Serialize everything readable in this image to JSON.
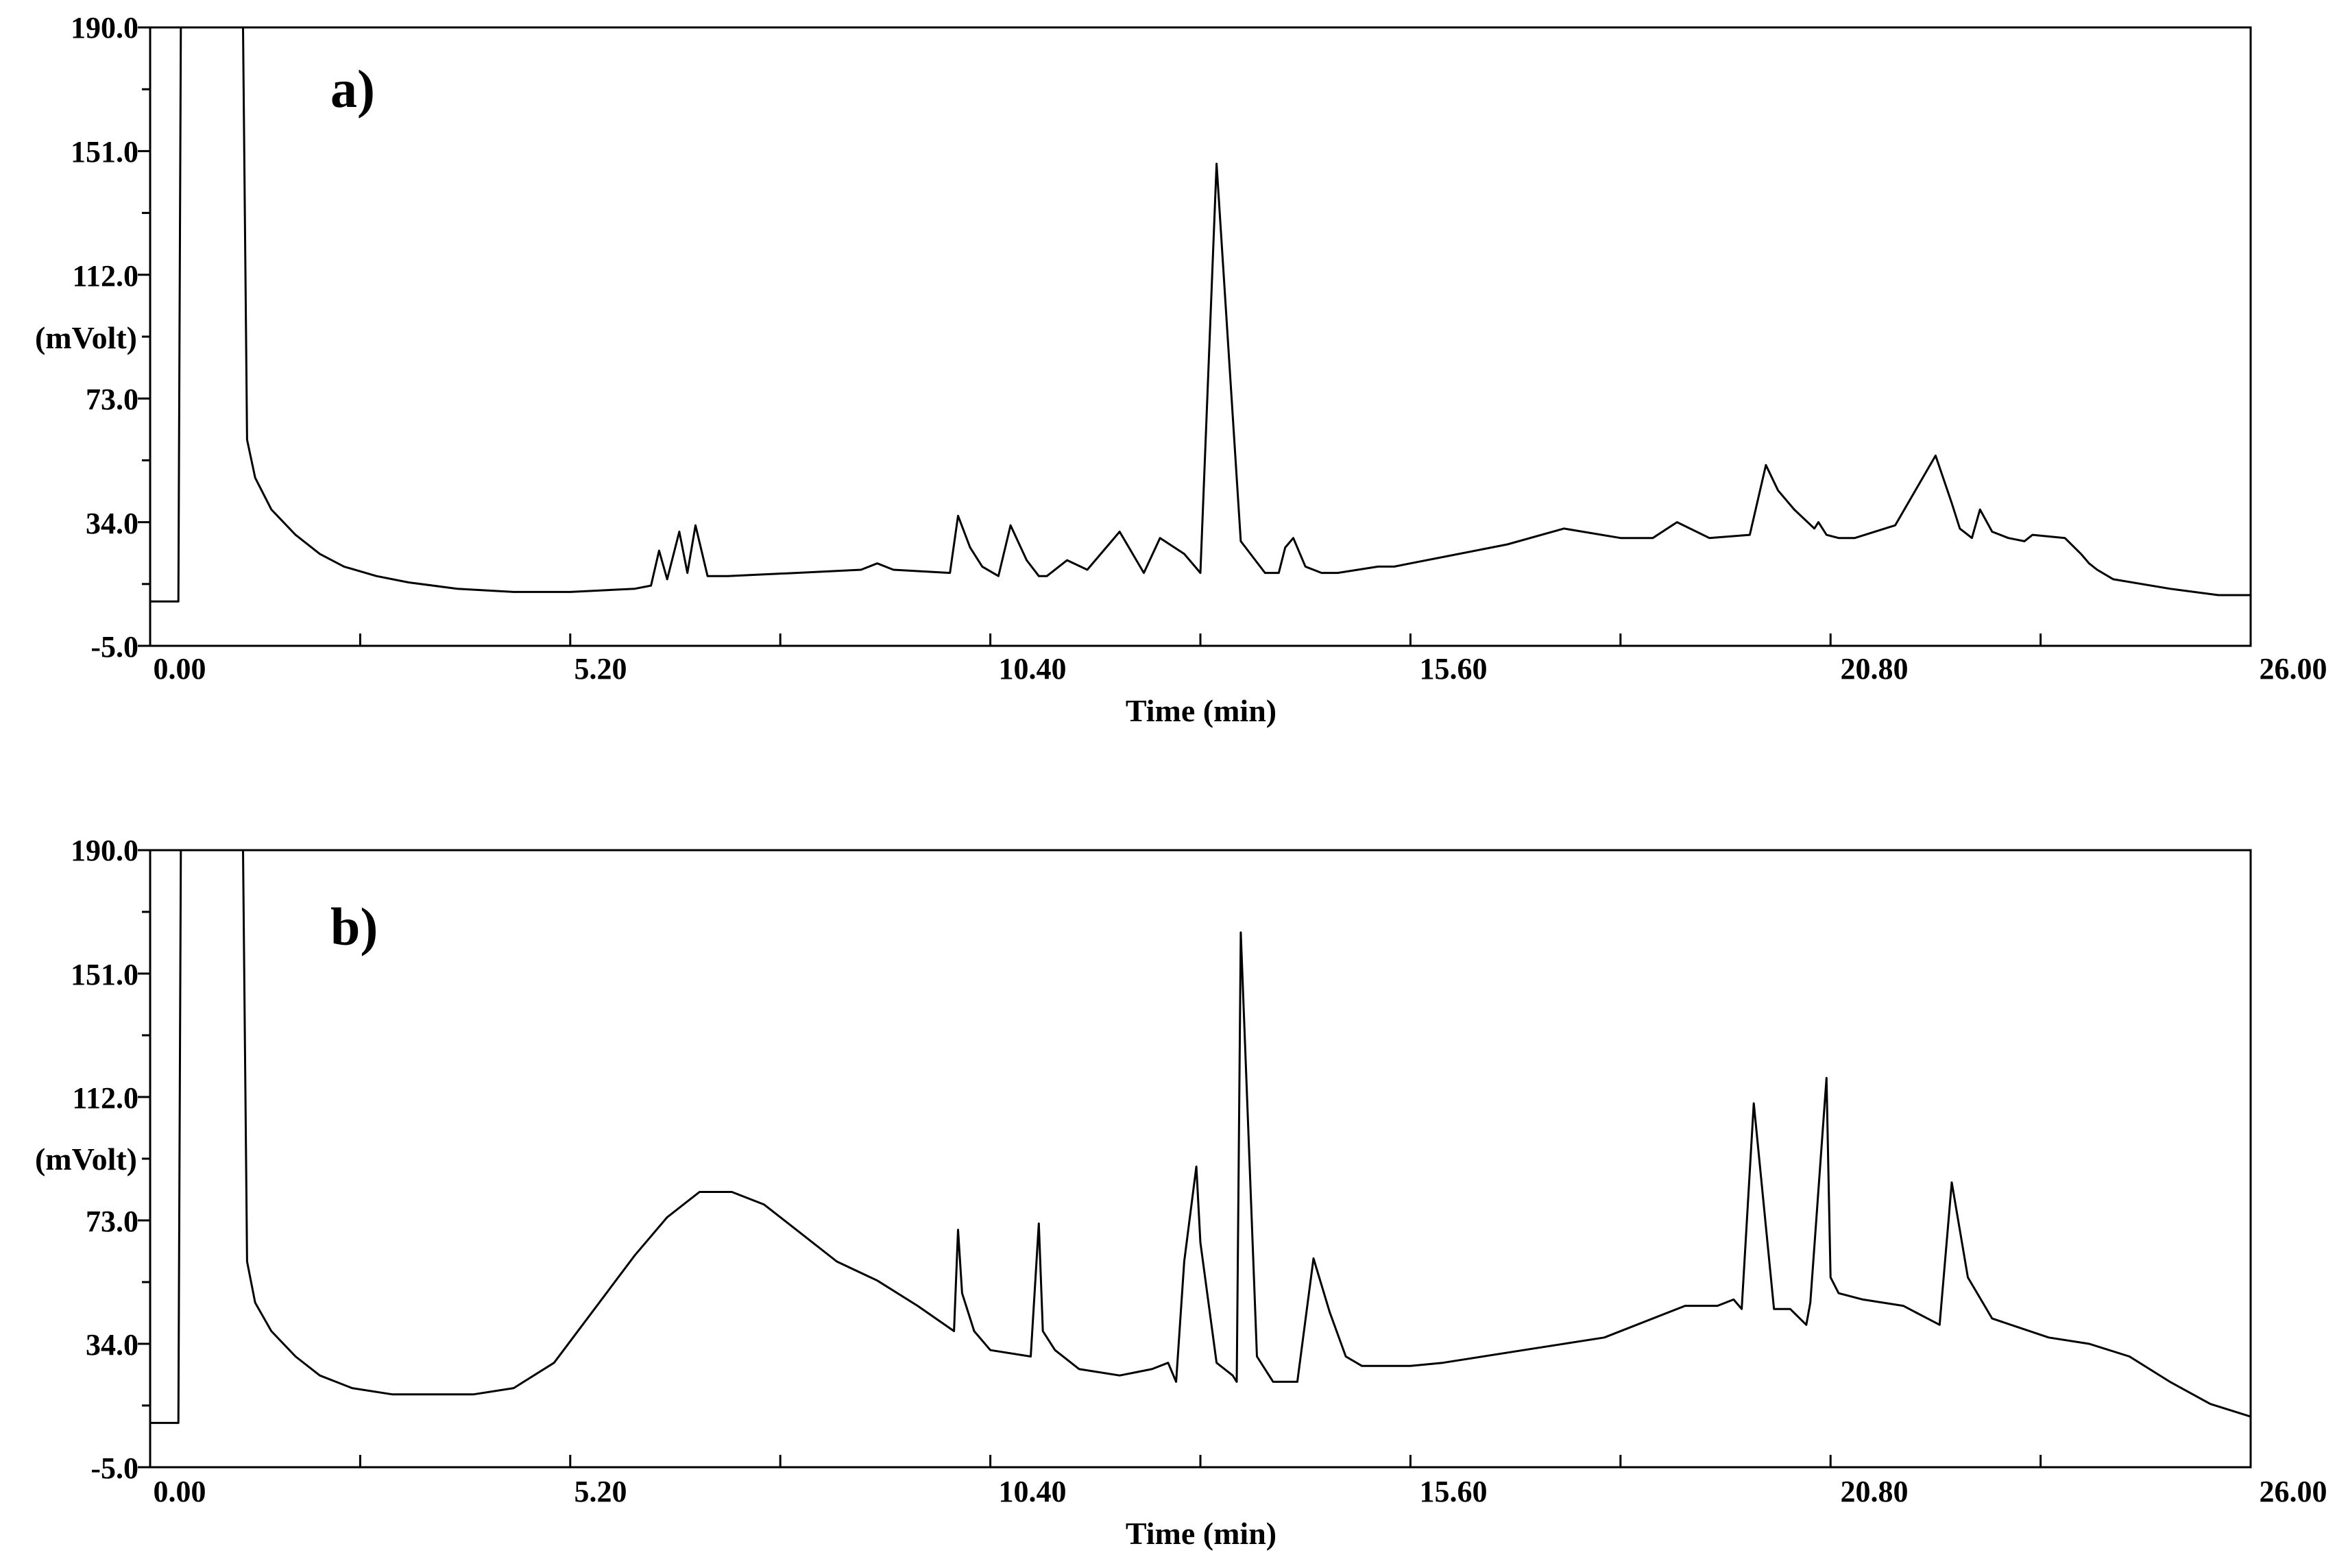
{
  "chart_data": [
    {
      "type": "line",
      "panel_label": "a)",
      "xlabel": "Time (min)",
      "ylabel": "(mVolt)",
      "xlim": [
        0,
        26
      ],
      "ylim": [
        -5,
        190
      ],
      "x_ticks": [
        "0.00",
        "5.20",
        "10.40",
        "15.60",
        "20.80",
        "26.00"
      ],
      "y_ticks": [
        "190.0",
        "151.0",
        "112.0",
        "73.0",
        "34.0",
        "-5.0"
      ],
      "grid": false,
      "series": [
        {
          "x": [
            0.0,
            0.3,
            0.35,
            0.38,
            1.15,
            1.2,
            1.3,
            1.5,
            1.8,
            2.1,
            2.4,
            2.8,
            3.2,
            3.8,
            4.5,
            5.2,
            6.0,
            6.2,
            6.3,
            6.4,
            6.55,
            6.65,
            6.75,
            6.9,
            7.0,
            7.05,
            7.15,
            8.0,
            8.8,
            9.0,
            9.2,
            9.9,
            10.0,
            10.15,
            10.3,
            10.5,
            10.65,
            10.85,
            11.0,
            11.1,
            11.35,
            11.6,
            12.0,
            12.3,
            12.5,
            12.8,
            13.0,
            13.2,
            13.5,
            13.8,
            13.9,
            13.97,
            14.05,
            14.15,
            14.3,
            14.5,
            14.7,
            14.95,
            15.2,
            15.4,
            15.6,
            16.0,
            16.8,
            17.5,
            18.2,
            18.6,
            18.9,
            19.3,
            19.8,
            20.0,
            20.15,
            20.35,
            20.6,
            20.65,
            20.75,
            20.9,
            21.1,
            21.6,
            22.1,
            22.3,
            22.4,
            22.55,
            22.65,
            22.8,
            23.0,
            23.2,
            23.3,
            23.7,
            23.9,
            24.0,
            24.1,
            24.3,
            25.0,
            25.6,
            26.0
          ],
          "y": [
            9,
            9,
            9,
            190,
            190,
            60,
            48,
            38,
            30,
            24,
            20,
            17,
            15,
            13,
            12,
            12,
            13,
            14,
            25,
            16,
            31,
            18,
            33,
            17,
            17,
            17,
            17,
            18,
            19,
            21,
            19,
            18,
            36,
            26,
            20,
            17,
            33,
            22,
            17,
            17,
            22,
            19,
            31,
            18,
            29,
            24,
            18,
            147,
            28,
            18,
            18,
            18,
            26,
            29,
            20,
            18,
            18,
            19,
            20,
            20,
            21,
            23,
            27,
            32,
            29,
            29,
            34,
            29,
            30,
            52,
            44,
            38,
            32,
            34,
            30,
            29,
            29,
            33,
            55,
            40,
            32,
            29,
            38,
            31,
            29,
            28,
            30,
            29,
            24,
            21,
            19,
            16,
            13,
            11,
            11
          ]
        }
      ]
    },
    {
      "type": "line",
      "panel_label": "b)",
      "xlabel": "Time (min)",
      "ylabel": "(mVolt)",
      "xlim": [
        0,
        26
      ],
      "ylim": [
        -5,
        190
      ],
      "x_ticks": [
        "0.00",
        "5.20",
        "10.40",
        "15.60",
        "20.80",
        "26.00"
      ],
      "y_ticks": [
        "190.0",
        "151.0",
        "112.0",
        "73.0",
        "34.0",
        "-5.0"
      ],
      "grid": false,
      "series": [
        {
          "x": [
            0.0,
            0.3,
            0.35,
            0.38,
            1.15,
            1.2,
            1.3,
            1.5,
            1.8,
            2.1,
            2.5,
            3.0,
            3.5,
            4.0,
            4.5,
            5.0,
            5.5,
            6.0,
            6.4,
            6.8,
            7.2,
            7.6,
            8.0,
            8.5,
            9.0,
            9.5,
            9.95,
            10.0,
            10.05,
            10.2,
            10.4,
            10.9,
            11.0,
            11.05,
            11.2,
            11.5,
            12.0,
            12.4,
            12.6,
            12.7,
            12.8,
            12.95,
            13.0,
            13.2,
            13.4,
            13.45,
            13.5,
            13.7,
            13.9,
            14.2,
            14.4,
            14.6,
            14.8,
            15.0,
            15.6,
            16.0,
            17.0,
            18.0,
            19.0,
            19.4,
            19.6,
            19.7,
            19.85,
            20.1,
            20.3,
            20.5,
            20.55,
            20.75,
            20.8,
            20.9,
            21.2,
            21.7,
            22.0,
            22.15,
            22.3,
            22.5,
            22.8,
            23.5,
            24.0,
            24.5,
            25.0,
            25.5,
            26.0
          ],
          "y": [
            9,
            9,
            9,
            190,
            190,
            60,
            47,
            38,
            30,
            24,
            20,
            18,
            18,
            18,
            20,
            28,
            45,
            62,
            74,
            82,
            82,
            78,
            70,
            60,
            54,
            46,
            38,
            70,
            50,
            38,
            32,
            30,
            72,
            38,
            32,
            26,
            24,
            26,
            28,
            22,
            60,
            90,
            66,
            28,
            24,
            22,
            164,
            30,
            22,
            22,
            61,
            44,
            30,
            27,
            27,
            28,
            32,
            36,
            46,
            46,
            48,
            45,
            110,
            45,
            45,
            40,
            47,
            118,
            55,
            50,
            48,
            46,
            42,
            40,
            85,
            55,
            42,
            36,
            34,
            30,
            22,
            15,
            11
          ]
        }
      ]
    }
  ]
}
